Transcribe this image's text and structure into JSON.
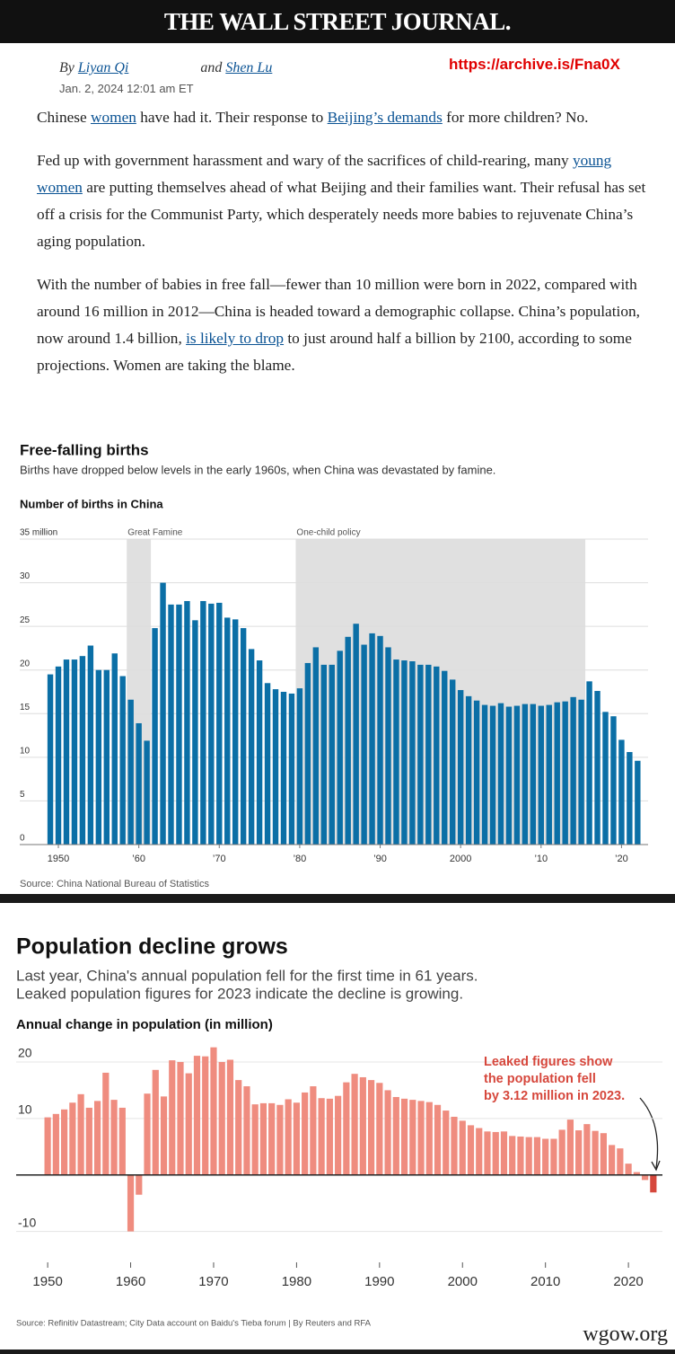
{
  "header": {
    "masthead": "THE WALL STREET JOURNAL.",
    "archive_url": "https://archive.is/Fna0X"
  },
  "byline": {
    "by": "By",
    "author1": "Liyan Qi",
    "and": "and",
    "author2": "Shen Lu",
    "date": "Jan. 2, 2024 12:01 am ET"
  },
  "paragraphs": [
    [
      {
        "text": "Chinese "
      },
      {
        "text": "women",
        "link": true
      },
      {
        "text": " have had it. Their response to "
      },
      {
        "text": "Beijing’s demands",
        "link": true
      },
      {
        "text": " for more children? No."
      }
    ],
    [
      {
        "text": "Fed up with government harassment and wary of the sacrifices of child-rearing, many "
      },
      {
        "text": "young women",
        "link": true
      },
      {
        "text": " are putting themselves ahead of what Beijing and their families want. Their refusal has set off a crisis for the Communist Party, which desperately needs more babies to rejuvenate China’s aging population."
      }
    ],
    [
      {
        "text": "With the number of babies in free fall—fewer than 10 million were born in 2022, compared with around 16 million in 2012—China is headed toward a demographic collapse. China’s population, now around 1.4 billion, "
      },
      {
        "text": "is likely to drop",
        "link": true
      },
      {
        "text": " to just around half a billion by 2100, according to some projections. Women are taking the blame."
      }
    ]
  ],
  "chart_data": [
    {
      "type": "bar",
      "title": "Free-falling births",
      "subtitle": "Births have dropped below levels in the early 1960s, when China was devastated by famine.",
      "y_label": "Number of births in China",
      "x": [
        1949,
        1950,
        1951,
        1952,
        1953,
        1954,
        1955,
        1956,
        1957,
        1958,
        1959,
        1960,
        1961,
        1962,
        1963,
        1964,
        1965,
        1966,
        1967,
        1968,
        1969,
        1970,
        1971,
        1972,
        1973,
        1974,
        1975,
        1976,
        1977,
        1978,
        1979,
        1980,
        1981,
        1982,
        1983,
        1984,
        1985,
        1986,
        1987,
        1988,
        1989,
        1990,
        1991,
        1992,
        1993,
        1994,
        1995,
        1996,
        1997,
        1998,
        1999,
        2000,
        2001,
        2002,
        2003,
        2004,
        2005,
        2006,
        2007,
        2008,
        2009,
        2010,
        2011,
        2012,
        2013,
        2014,
        2015,
        2016,
        2017,
        2018,
        2019,
        2020,
        2021,
        2022
      ],
      "values": [
        19.5,
        20.4,
        21.2,
        21.2,
        21.6,
        22.8,
        20.0,
        20.0,
        21.9,
        19.3,
        16.6,
        13.9,
        11.9,
        24.8,
        30.0,
        27.5,
        27.5,
        27.9,
        25.7,
        27.9,
        27.6,
        27.7,
        26.0,
        25.8,
        24.8,
        22.4,
        21.1,
        18.5,
        17.8,
        17.5,
        17.3,
        17.9,
        20.8,
        22.6,
        20.6,
        20.6,
        22.2,
        23.8,
        25.3,
        22.9,
        24.2,
        23.9,
        22.6,
        21.2,
        21.1,
        21.0,
        20.6,
        20.6,
        20.4,
        19.9,
        18.9,
        17.7,
        17.0,
        16.5,
        16.0,
        15.9,
        16.2,
        15.8,
        15.9,
        16.1,
        16.1,
        15.9,
        16.0,
        16.3,
        16.4,
        16.9,
        16.6,
        18.7,
        17.6,
        15.2,
        14.7,
        12.0,
        10.6,
        9.6
      ],
      "color": "#0b6fa6",
      "xlim": [
        1945.2,
        2023.3
      ],
      "ylim": [
        0,
        35
      ],
      "yticks": [
        0,
        5,
        10,
        15,
        20,
        25,
        30,
        {
          "value": 35,
          "label": "35 million"
        }
      ],
      "xticks": [
        {
          "value": 1950,
          "label": "1950"
        },
        {
          "value": 1960,
          "label": "’60"
        },
        {
          "value": 1970,
          "label": "’70"
        },
        {
          "value": 1980,
          "label": "’80"
        },
        {
          "value": 1990,
          "label": "’90"
        },
        {
          "value": 2000,
          "label": "2000"
        },
        {
          "value": 2010,
          "label": "’10"
        },
        {
          "value": 2020,
          "label": "’20"
        }
      ],
      "shaded_periods": [
        {
          "label": "Great Famine",
          "start": 1959,
          "end": 1961
        },
        {
          "label": "One-child policy",
          "start": 1980,
          "end": 2015
        }
      ],
      "grid": true,
      "source": "Source: China National Bureau of Statistics"
    },
    {
      "type": "bar",
      "title": "Population decline grows",
      "subtitle": [
        "Last year, China's annual population fell for the first time in 61 years.",
        "Leaked population figures for 2023 indicate the decline is growing."
      ],
      "y_label": "Annual change in population (in million)",
      "x": [
        1950,
        1951,
        1952,
        1953,
        1954,
        1955,
        1956,
        1957,
        1958,
        1959,
        1960,
        1961,
        1962,
        1963,
        1964,
        1965,
        1966,
        1967,
        1968,
        1969,
        1970,
        1971,
        1972,
        1973,
        1974,
        1975,
        1976,
        1977,
        1978,
        1979,
        1980,
        1981,
        1982,
        1983,
        1984,
        1985,
        1986,
        1987,
        1988,
        1989,
        1990,
        1991,
        1992,
        1993,
        1994,
        1995,
        1996,
        1997,
        1998,
        1999,
        2000,
        2001,
        2002,
        2003,
        2004,
        2005,
        2006,
        2007,
        2008,
        2009,
        2010,
        2011,
        2012,
        2013,
        2014,
        2015,
        2016,
        2017,
        2018,
        2019,
        2020,
        2021,
        2022,
        2023
      ],
      "values": [
        10.2,
        10.8,
        11.6,
        12.8,
        14.3,
        11.9,
        13.1,
        18.1,
        13.3,
        11.9,
        -10.0,
        -3.5,
        14.4,
        18.6,
        13.9,
        20.3,
        20.0,
        18.0,
        21.1,
        21.0,
        22.6,
        20.0,
        20.4,
        16.8,
        15.7,
        12.5,
        12.7,
        12.7,
        12.4,
        13.4,
        12.8,
        14.6,
        15.7,
        13.6,
        13.5,
        14.0,
        16.4,
        17.9,
        17.3,
        16.8,
        16.3,
        15.0,
        13.8,
        13.5,
        13.3,
        13.1,
        12.9,
        12.4,
        11.4,
        10.3,
        9.6,
        8.8,
        8.3,
        7.7,
        7.6,
        7.7,
        6.9,
        6.8,
        6.7,
        6.7,
        6.4,
        6.4,
        8.0,
        9.8,
        7.9,
        9.0,
        7.8,
        7.4,
        5.3,
        4.7,
        2.0,
        0.5,
        -0.9,
        -3.1
      ],
      "color": "#ef8c7f",
      "highlight_color": "#d6473c",
      "xlim": [
        1946.2,
        2024.1
      ],
      "ylim": [
        -11.5,
        23.5
      ],
      "yticks": [
        -10,
        10,
        20
      ],
      "xticks": [
        1950,
        1960,
        1970,
        1980,
        1990,
        2000,
        2010,
        2020
      ],
      "grid": true,
      "annotation": [
        "Leaked figures show",
        "the population fell",
        "by 3.12 million in 2023."
      ],
      "source": "Source: Refinitiv Datastream; City Data account on Baidu's Tieba forum | By Reuters and RFA"
    }
  ],
  "footer": {
    "watermark": "wgow.org"
  }
}
